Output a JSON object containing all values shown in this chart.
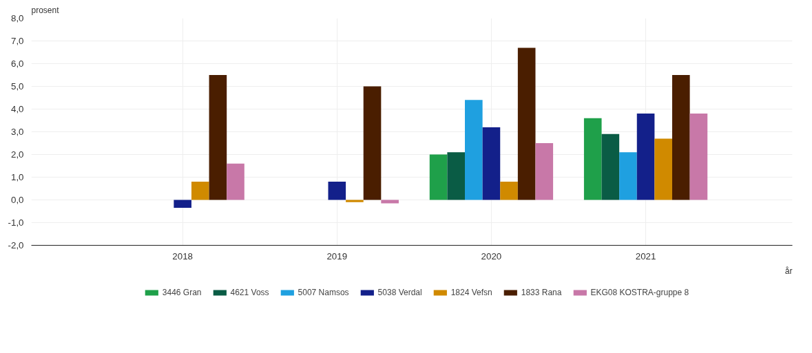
{
  "chart_data": {
    "type": "bar",
    "ylabel": "prosent",
    "xlabel": "år",
    "categories": [
      "2018",
      "2019",
      "2020",
      "2021"
    ],
    "series": [
      {
        "name": "3446 Gran",
        "color": "#1fa04a",
        "values": [
          null,
          null,
          2.0,
          3.6
        ]
      },
      {
        "name": "4621 Voss",
        "color": "#0a5c45",
        "values": [
          null,
          null,
          2.1,
          2.9
        ]
      },
      {
        "name": "5007 Namsos",
        "color": "#1fa0e0",
        "values": [
          null,
          null,
          4.4,
          2.1
        ]
      },
      {
        "name": "5038 Verdal",
        "color": "#13208a",
        "values": [
          -0.35,
          0.8,
          3.2,
          3.8
        ]
      },
      {
        "name": "1824 Vefsn",
        "color": "#d08a00",
        "values": [
          0.8,
          -0.1,
          0.8,
          2.7
        ]
      },
      {
        "name": "1833 Rana",
        "color": "#4a1e00",
        "values": [
          5.5,
          5.0,
          6.7,
          5.5
        ]
      },
      {
        "name": "EKG08 KOSTRA-gruppe 8",
        "color": "#c878a8",
        "values": [
          1.6,
          -0.15,
          2.5,
          3.8
        ]
      }
    ],
    "ylim": [
      -2,
      8
    ],
    "yticks": [
      {
        "value": -2,
        "label": "-2,0"
      },
      {
        "value": -1,
        "label": "-1,0"
      },
      {
        "value": 0,
        "label": "0,0"
      },
      {
        "value": 1,
        "label": "1,0"
      },
      {
        "value": 2,
        "label": "2,0"
      },
      {
        "value": 3,
        "label": "3,0"
      },
      {
        "value": 4,
        "label": "4,0"
      },
      {
        "value": 5,
        "label": "5,0"
      },
      {
        "value": 6,
        "label": "6,0"
      },
      {
        "value": 7,
        "label": "7,0"
      },
      {
        "value": 8,
        "label": "8,0"
      }
    ],
    "grid": true,
    "legend": "bottom"
  }
}
